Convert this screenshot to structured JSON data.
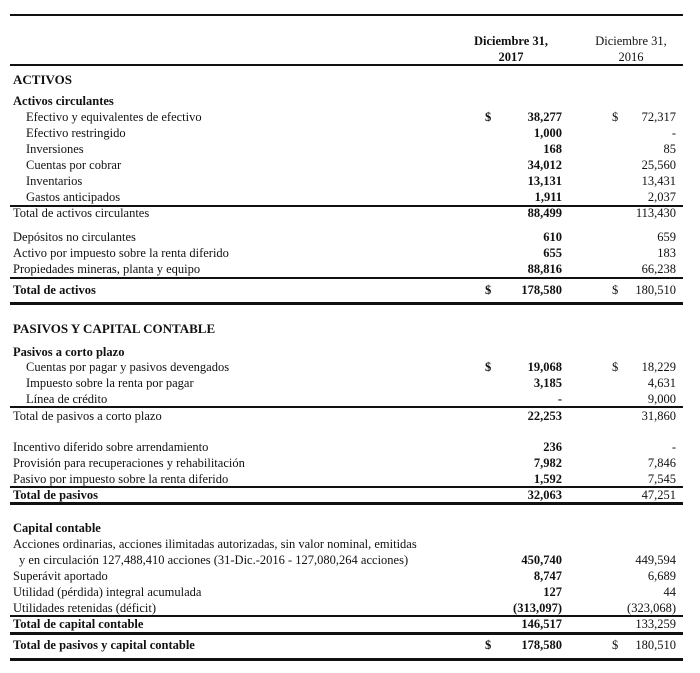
{
  "header": {
    "col_2017": [
      "Diciembre 31,",
      "2017"
    ],
    "col_2016": [
      "Diciembre 31,",
      "2016"
    ]
  },
  "rows": [
    {
      "label": "ACTIVOS"
    },
    {
      "label": "Activos circulantes"
    },
    {
      "label": "Efectivo y equivalentes de efectivo",
      "c2017": "$",
      "v2017": "38,277",
      "c2016": "$",
      "v2016": "72,317"
    },
    {
      "label": "Efectivo restringido",
      "v2017": "1,000",
      "v2016": "-"
    },
    {
      "label": "Inversiones",
      "v2017": "168",
      "v2016": "85"
    },
    {
      "label": "Cuentas por cobrar",
      "v2017": "34,012",
      "v2016": "25,560"
    },
    {
      "label": "Inventarios",
      "v2017": "13,131",
      "v2016": "13,431"
    },
    {
      "label": "Gastos anticipados",
      "v2017": "1,911",
      "v2016": "2,037"
    },
    {
      "label": "Total de activos circulantes",
      "v2017": "88,499",
      "v2016": "113,430"
    },
    {
      "label": "Depósitos no circulantes",
      "v2017": "610",
      "v2016": "659"
    },
    {
      "label": "Activo por impuesto sobre la renta diferido",
      "v2017": "655",
      "v2016": "183"
    },
    {
      "label": "Propiedades mineras, planta y equipo",
      "v2017": "88,816",
      "v2016": "66,238"
    },
    {
      "label": "Total de activos",
      "c2017": "$",
      "v2017": "178,580",
      "c2016": "$",
      "v2016": "180,510"
    },
    {
      "label": "PASIVOS Y CAPITAL CONTABLE"
    },
    {
      "label": "Pasivos a corto plazo"
    },
    {
      "label": "Cuentas por pagar y pasivos devengados",
      "c2017": "$",
      "v2017": "19,068",
      "c2016": "$",
      "v2016": "18,229"
    },
    {
      "label": "Impuesto sobre la renta por pagar",
      "v2017": "3,185",
      "v2016": "4,631"
    },
    {
      "label": "Línea de crédito",
      "v2017": "-",
      "v2016": "9,000"
    },
    {
      "label": "Total de pasivos a corto plazo",
      "v2017": "22,253",
      "v2016": "31,860"
    },
    {
      "label": "Incentivo diferido sobre arrendamiento",
      "v2017": "236",
      "v2016": "-"
    },
    {
      "label": "Provisión para recuperaciones y rehabilitación",
      "v2017": "7,982",
      "v2016": "7,846"
    },
    {
      "label": "Pasivo por impuesto sobre la renta diferido",
      "v2017": "1,592",
      "v2016": "7,545"
    },
    {
      "label": "Total de pasivos",
      "v2017": "32,063",
      "v2016": "47,251"
    },
    {
      "label": "Capital contable"
    },
    {
      "label": "Acciones ordinarias, acciones ilimitadas autorizadas, sin valor nominal, emitidas"
    },
    {
      "label": "y en circulación 127,488,410 acciones (31-Dic.-2016 - 127,080,264 acciones)",
      "v2017": "450,740",
      "v2016": "449,594"
    },
    {
      "label": "Superávit aportado",
      "v2017": "8,747",
      "v2016": "6,689"
    },
    {
      "label": "Utilidad (pérdida) integral acumulada",
      "v2017": "127",
      "v2016": "44"
    },
    {
      "label": "Utilidades retenidas (déficit)",
      "v2017": "(313,097)",
      "v2016": "(323,068)"
    },
    {
      "label": "Total de capital contable",
      "v2017": "146,517",
      "v2016": "133,259"
    },
    {
      "label": "Total de pasivos y capital contable",
      "c2017": "$",
      "v2017": "178,580",
      "c2016": "$",
      "v2016": "180,510"
    }
  ]
}
